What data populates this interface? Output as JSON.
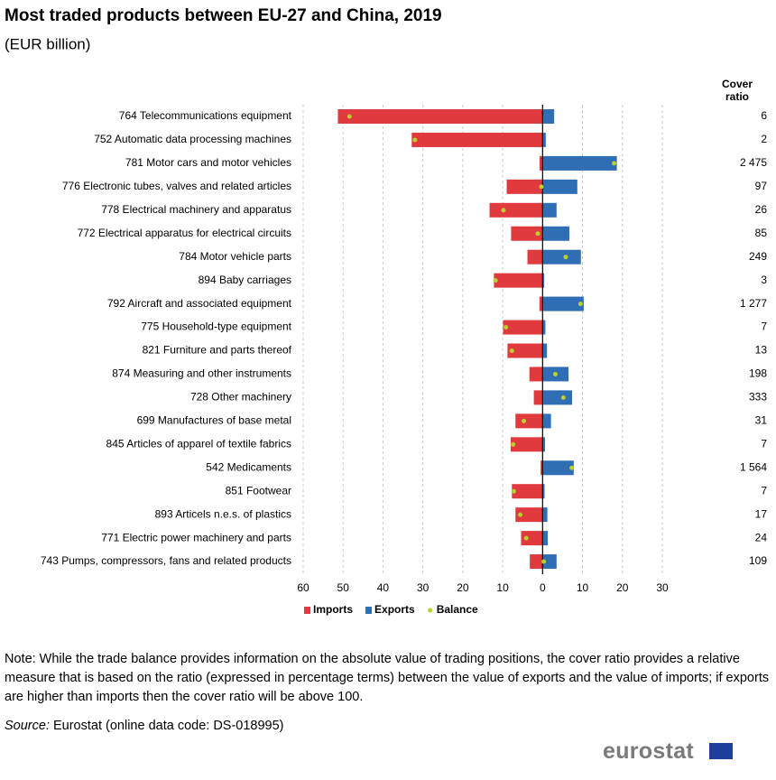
{
  "chart_data": {
    "type": "bar",
    "orientation": "horizontal",
    "title": "Most traded products between EU-27 and China, 2019",
    "subtitle": "(EUR billion)",
    "categories": [
      "764 Telecommunications equipment",
      "752 Automatic data processing machines",
      "781 Motor cars and motor vehicles",
      "776 Electronic tubes, valves and related articles",
      "778 Electrical machinery and apparatus",
      "772 Electrical apparatus for electrical circuits",
      "784 Motor vehicle parts",
      "894 Baby carriages",
      "792 Aircraft and associated equipment",
      "775 Household-type equipment",
      "821 Furniture and parts thereof",
      "874 Measuring and other instruments",
      "728 Other machinery",
      "699 Manufactures of base metal",
      "845 Articles of apparel of textile fabrics",
      "542 Medicaments",
      "851 Footwear",
      "893 Articels n.e.s. of plastics",
      "771 Electric power machinery and parts",
      "743 Pumps, compressors, fans and related products"
    ],
    "series": [
      {
        "name": "Imports",
        "color": "#e0393e",
        "values": [
          -51.3,
          -32.8,
          -0.75,
          -9.0,
          -13.3,
          -7.9,
          -3.8,
          -12.2,
          -0.8,
          -9.9,
          -8.8,
          -3.3,
          -2.2,
          -6.8,
          -8.0,
          -0.5,
          -7.7,
          -6.8,
          -5.4,
          -3.2
        ]
      },
      {
        "name": "Exports",
        "color": "#2f6db4",
        "values": [
          2.9,
          0.8,
          18.6,
          8.7,
          3.5,
          6.7,
          9.6,
          0.4,
          10.3,
          0.7,
          1.1,
          6.5,
          7.4,
          2.1,
          0.6,
          7.8,
          0.5,
          1.2,
          1.3,
          3.5
        ]
      },
      {
        "name": "Balance",
        "color": "#b9cf2c",
        "marker": "dot",
        "values": [
          -48.4,
          -32.0,
          17.9,
          -0.3,
          -9.8,
          -1.2,
          5.8,
          -11.8,
          9.5,
          -9.2,
          -7.7,
          3.2,
          5.2,
          -4.7,
          -7.4,
          7.3,
          -7.2,
          -5.6,
          -4.1,
          0.3
        ]
      }
    ],
    "xlim": [
      -60,
      30
    ],
    "xticks": [
      {
        "value": -60,
        "label": "60"
      },
      {
        "value": -50,
        "label": "50"
      },
      {
        "value": -40,
        "label": "40"
      },
      {
        "value": -30,
        "label": "30"
      },
      {
        "value": -20,
        "label": "20"
      },
      {
        "value": -10,
        "label": "10"
      },
      0,
      10,
      20,
      30
    ],
    "grid": true,
    "legend": "bottom",
    "cover_ratio": {
      "title": "Cover ratio",
      "values": [
        6,
        2,
        2475,
        97,
        26,
        85,
        249,
        3,
        1277,
        7,
        13,
        198,
        333,
        31,
        7,
        1564,
        7,
        17,
        24,
        109
      ],
      "value_labels": [
        "6",
        "2",
        "2 475",
        "97",
        "26",
        "85",
        "249",
        "3",
        "1 277",
        "7",
        "13",
        "198",
        "333",
        "31",
        "7",
        "1 564",
        "7",
        "17",
        "24",
        "109"
      ]
    }
  },
  "note": "Note: While the trade balance provides information on the absolute value of trading positions, the cover ratio provides a relative measure that is based on the ratio (expressed in percentage terms) between the value of exports and the value of imports; if exports are higher than imports then the cover ratio will be above 100.",
  "source_label": "Source:",
  "source": "Eurostat (online data code: DS-018995)",
  "logo": "eurostat"
}
